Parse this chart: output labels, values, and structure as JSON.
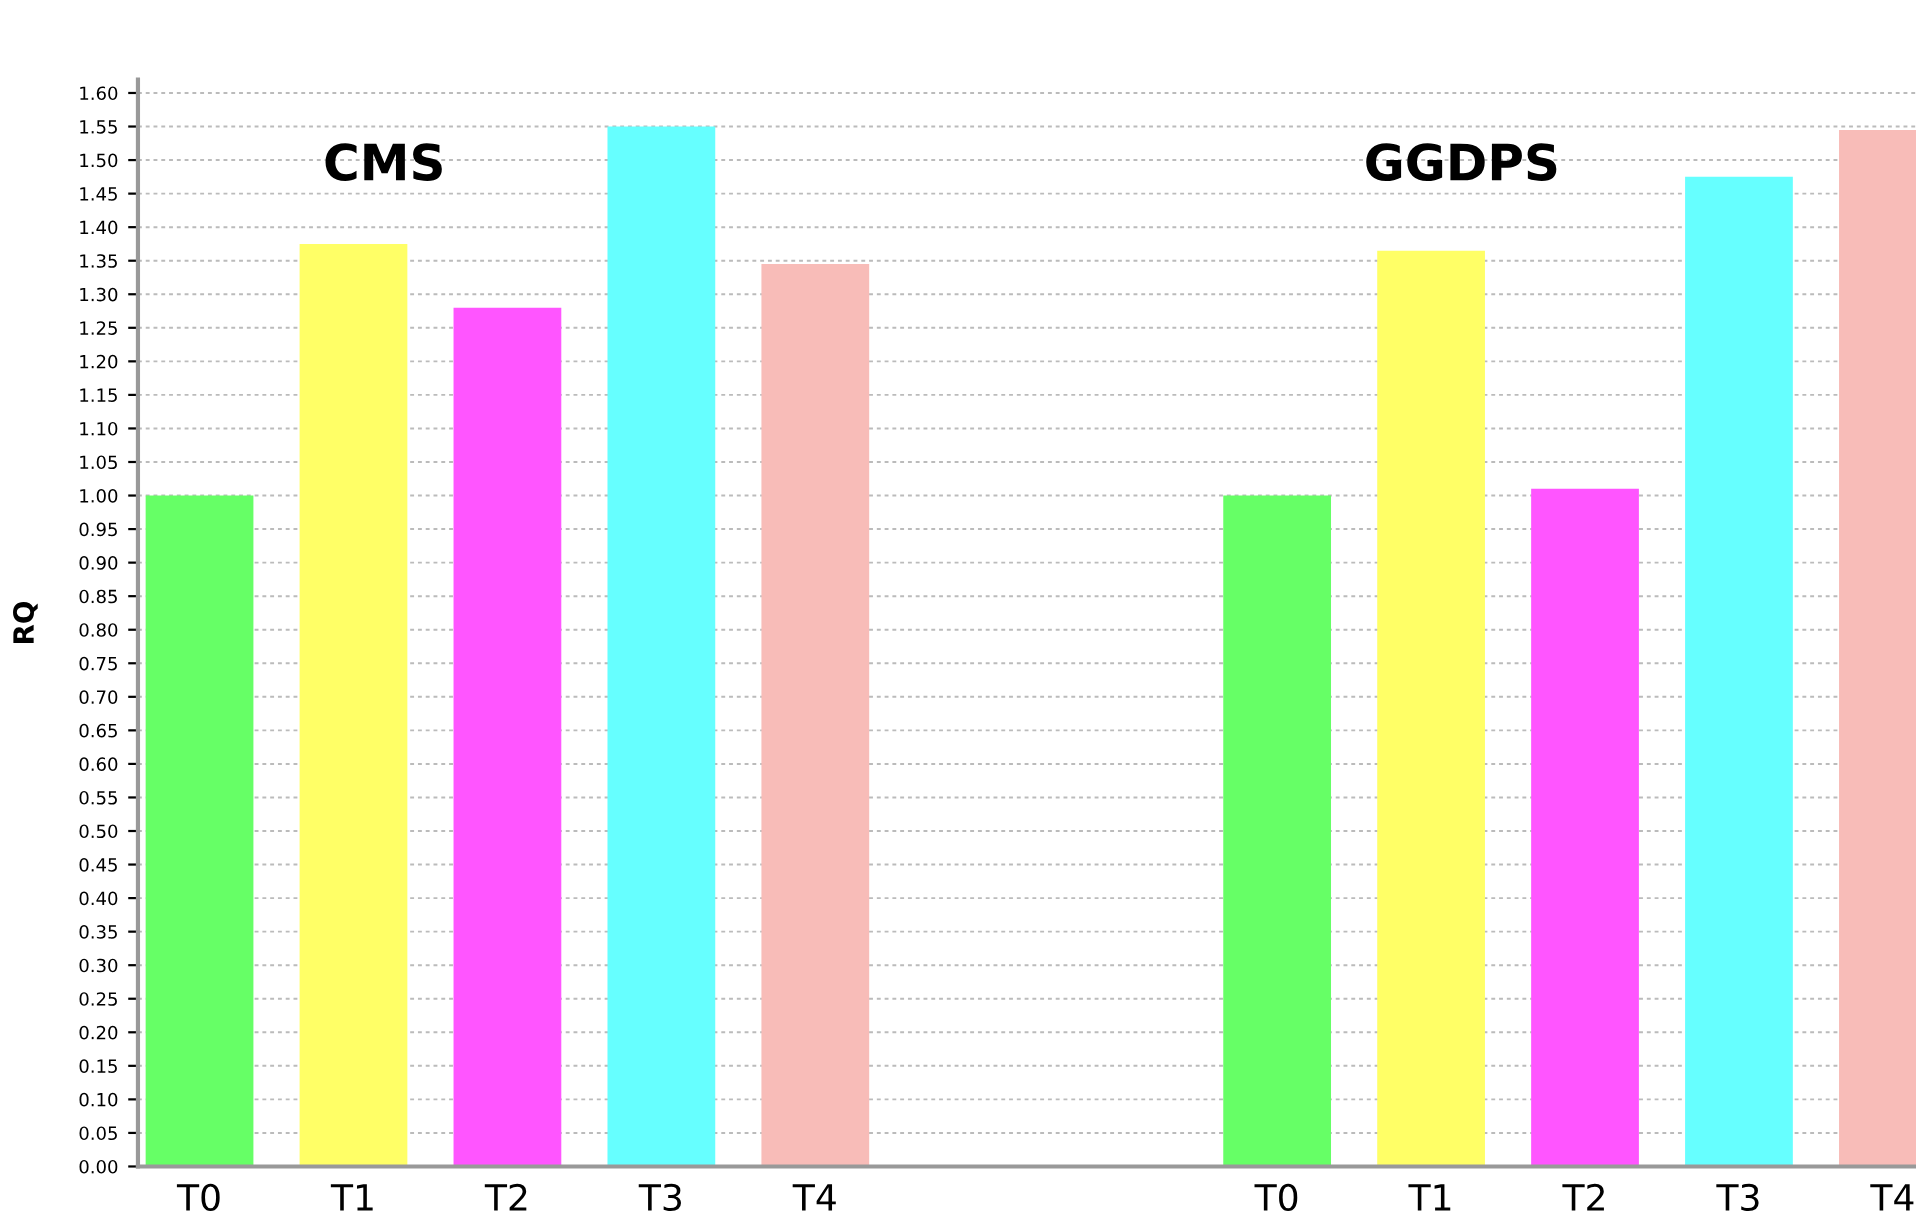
{
  "chart_data": {
    "type": "bar",
    "ylabel": "RQ",
    "categories": [
      "T0",
      "T1",
      "T2",
      "T3",
      "T4",
      null,
      null,
      "T0",
      "T1",
      "T2",
      "T3",
      "T4"
    ],
    "values": [
      1.0,
      1.375,
      1.28,
      1.55,
      1.345,
      null,
      null,
      1.0,
      1.365,
      1.01,
      1.475,
      1.545
    ],
    "colors": [
      "#66ff66",
      "#ffff66",
      "#ff55ff",
      "#66ffff",
      "#f8bcb8",
      "#ffffff",
      "#ffffff",
      "#66ff66",
      "#ffff66",
      "#ff55ff",
      "#66ffff",
      "#f8bcb8"
    ],
    "annotations": [
      "CMS",
      "GGDPS"
    ],
    "ylim": [
      0,
      1.62
    ],
    "yticks": [
      {
        "value": 0,
        "label": "0.00"
      },
      {
        "value": 0.05,
        "label": "0.05"
      },
      {
        "value": 0.1,
        "label": "0.10"
      },
      {
        "value": 0.15,
        "label": "0.15"
      },
      {
        "value": 0.2,
        "label": "0.20"
      },
      {
        "value": 0.25,
        "label": "0.25"
      },
      {
        "value": 0.3,
        "label": "0.30"
      },
      {
        "value": 0.35,
        "label": "0.35"
      },
      {
        "value": 0.4,
        "label": "0.40"
      },
      {
        "value": 0.45,
        "label": "0.45"
      },
      {
        "value": 0.5,
        "label": "0.50"
      },
      {
        "value": 0.55,
        "label": "0.55"
      },
      {
        "value": 0.6,
        "label": "0.60"
      },
      {
        "value": 0.65,
        "label": "0.65"
      },
      {
        "value": 0.7,
        "label": "0.70"
      },
      {
        "value": 0.75,
        "label": "0.75"
      },
      {
        "value": 0.8,
        "label": "0.80"
      },
      {
        "value": 0.85,
        "label": "0.85"
      },
      {
        "value": 0.9,
        "label": "0.90"
      },
      {
        "value": 0.95,
        "label": "0.95"
      },
      {
        "value": 1,
        "label": "1.00"
      },
      {
        "value": 1.05,
        "label": "1.05"
      },
      {
        "value": 1.1,
        "label": "1.10"
      },
      {
        "value": 1.15,
        "label": "1.15"
      },
      {
        "value": 1.2,
        "label": "1.20"
      },
      {
        "value": 1.25,
        "label": "1.25"
      },
      {
        "value": 1.3,
        "label": "1.30"
      },
      {
        "value": 1.35,
        "label": "1.35"
      },
      {
        "value": 1.4,
        "label": "1.40"
      },
      {
        "value": 1.45,
        "label": "1.45"
      },
      {
        "value": 1.5,
        "label": "1.50"
      },
      {
        "value": 1.55,
        "label": "1.55"
      },
      {
        "value": 1.6,
        "label": "1.60"
      }
    ],
    "grid": "y",
    "legend": false
  }
}
